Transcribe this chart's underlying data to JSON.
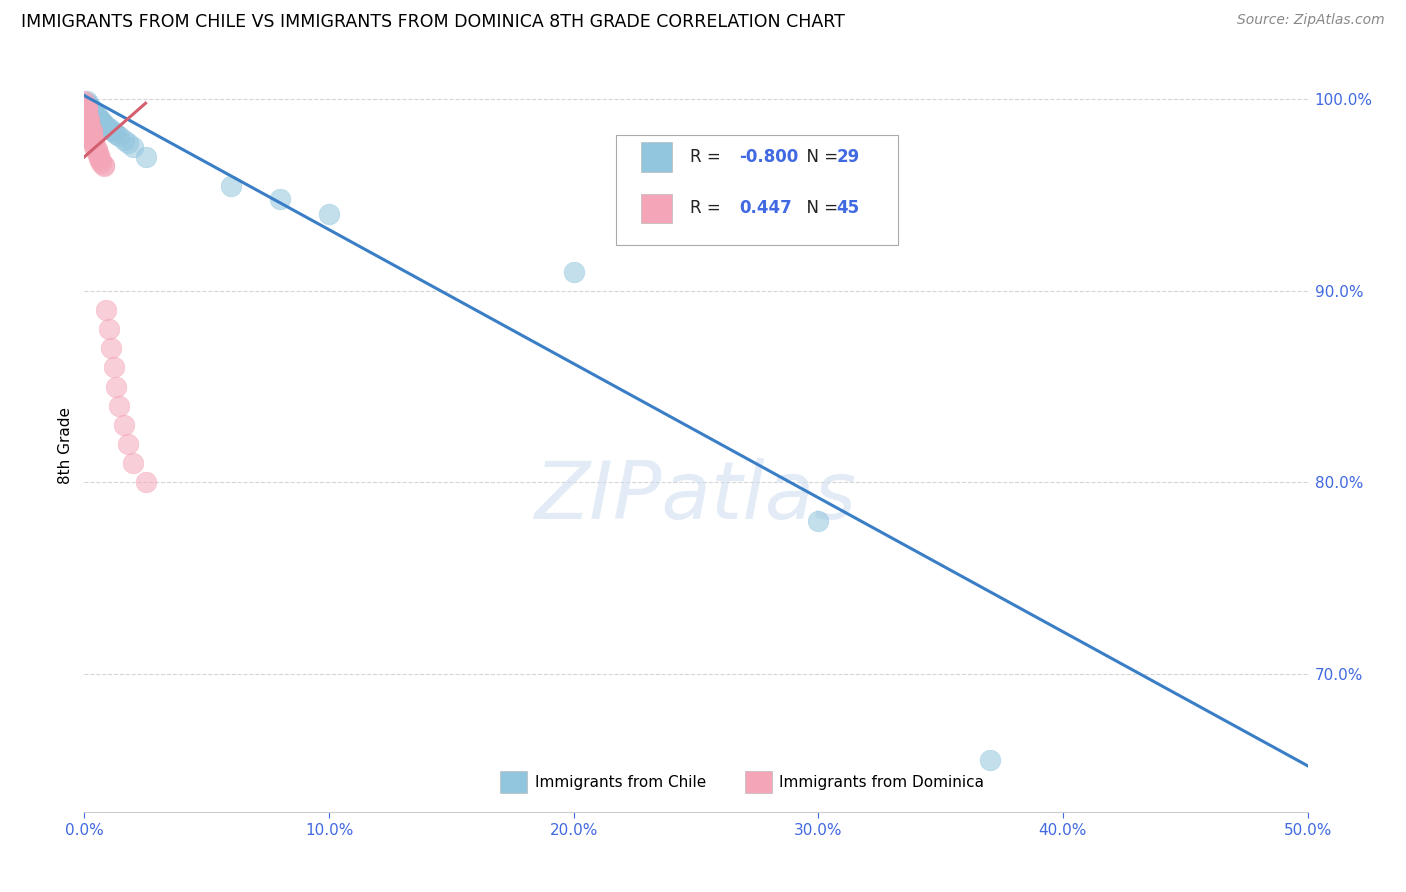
{
  "title": "IMMIGRANTS FROM CHILE VS IMMIGRANTS FROM DOMINICA 8TH GRADE CORRELATION CHART",
  "source": "Source: ZipAtlas.com",
  "ylabel": "8th Grade",
  "watermark": "ZIPatlas",
  "blue_label": "Immigrants from Chile",
  "pink_label": "Immigrants from Dominica",
  "blue_R": -0.8,
  "blue_N": 29,
  "pink_R": 0.447,
  "pink_N": 45,
  "blue_color": "#92c5de",
  "pink_color": "#f4a6b8",
  "blue_line_color": "#3a7ec6",
  "pink_line_color": "#d45f6e",
  "axis_label_color": "#4169E1",
  "xmin": 0.0,
  "xmax": 0.5,
  "ymin": 0.628,
  "ymax": 1.01,
  "yticks": [
    0.7,
    0.8,
    0.9,
    1.0
  ],
  "ytick_labels": [
    "70.0%",
    "80.0%",
    "90.0%",
    "100.0%"
  ],
  "blue_x": [
    0.001,
    0.001,
    0.002,
    0.002,
    0.003,
    0.003,
    0.004,
    0.005,
    0.005,
    0.006,
    0.007,
    0.007,
    0.008,
    0.009,
    0.01,
    0.011,
    0.012,
    0.013,
    0.014,
    0.016,
    0.018,
    0.02,
    0.025,
    0.06,
    0.08,
    0.1,
    0.2,
    0.3,
    0.37
  ],
  "blue_y": [
    0.999,
    0.998,
    0.997,
    0.996,
    0.995,
    0.994,
    0.993,
    0.992,
    0.991,
    0.99,
    0.989,
    0.988,
    0.987,
    0.986,
    0.985,
    0.984,
    0.983,
    0.982,
    0.981,
    0.979,
    0.977,
    0.975,
    0.97,
    0.955,
    0.948,
    0.94,
    0.91,
    0.78,
    0.655
  ],
  "pink_x": [
    0.0,
    0.0,
    0.0,
    0.001,
    0.001,
    0.001,
    0.001,
    0.001,
    0.001,
    0.002,
    0.002,
    0.002,
    0.002,
    0.002,
    0.002,
    0.003,
    0.003,
    0.003,
    0.003,
    0.003,
    0.003,
    0.004,
    0.004,
    0.004,
    0.004,
    0.005,
    0.005,
    0.005,
    0.006,
    0.006,
    0.006,
    0.007,
    0.007,
    0.008,
    0.008,
    0.009,
    0.01,
    0.011,
    0.012,
    0.013,
    0.014,
    0.016,
    0.018,
    0.02,
    0.025
  ],
  "pink_y": [
    0.999,
    0.998,
    0.997,
    0.996,
    0.995,
    0.994,
    0.993,
    0.992,
    0.991,
    0.99,
    0.989,
    0.988,
    0.987,
    0.986,
    0.985,
    0.984,
    0.983,
    0.982,
    0.981,
    0.98,
    0.979,
    0.978,
    0.977,
    0.976,
    0.975,
    0.974,
    0.973,
    0.972,
    0.971,
    0.97,
    0.969,
    0.968,
    0.967,
    0.966,
    0.965,
    0.89,
    0.88,
    0.87,
    0.86,
    0.85,
    0.84,
    0.83,
    0.82,
    0.81,
    0.8
  ],
  "blue_line_x0": 0.0,
  "blue_line_y0": 1.002,
  "blue_line_x1": 0.5,
  "blue_line_y1": 0.652,
  "pink_line_x0": 0.0,
  "pink_line_y0": 0.985,
  "pink_line_x1": 0.025,
  "pink_line_y1": 0.995
}
